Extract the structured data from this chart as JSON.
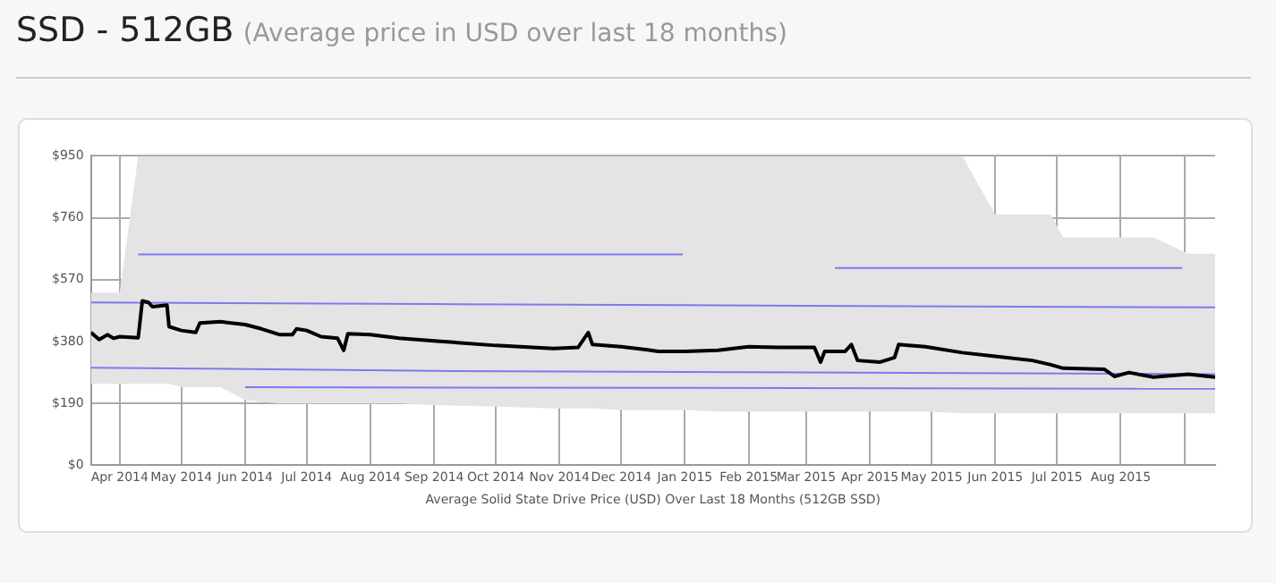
{
  "chart_data": {
    "type": "line",
    "title": "SSD - 512GB",
    "subtitle": "(Average price in USD over last 18 months)",
    "xlabel": "Average Solid State Drive Price (USD) Over Last 18 Months (512GB SSD)",
    "xlim": [
      "2014-03-18",
      "2015-09-16"
    ],
    "xticks": [
      {
        "value": "2014-04-01",
        "label": "Apr 2014"
      },
      {
        "value": "2014-05-01",
        "label": "May 2014"
      },
      {
        "value": "2014-06-01",
        "label": "Jun 2014"
      },
      {
        "value": "2014-07-01",
        "label": "Jul 2014"
      },
      {
        "value": "2014-08-01",
        "label": "Aug 2014"
      },
      {
        "value": "2014-09-01",
        "label": "Sep 2014"
      },
      {
        "value": "2014-10-01",
        "label": "Oct 2014"
      },
      {
        "value": "2014-11-01",
        "label": "Nov 2014"
      },
      {
        "value": "2014-12-01",
        "label": "Dec 2014"
      },
      {
        "value": "2015-01-01",
        "label": "Jan 2015"
      },
      {
        "value": "2015-02-01",
        "label": "Feb 2015"
      },
      {
        "value": "2015-03-01",
        "label": "Mar 2015"
      },
      {
        "value": "2015-04-01",
        "label": "Apr 2015"
      },
      {
        "value": "2015-05-01",
        "label": "May 2015"
      },
      {
        "value": "2015-06-01",
        "label": "Jun 2015"
      },
      {
        "value": "2015-07-01",
        "label": "Jul 2015"
      },
      {
        "value": "2015-08-01",
        "label": "Aug 2015"
      },
      {
        "value": "2015-09-01",
        "label": null
      }
    ],
    "ylim": [
      0,
      950
    ],
    "yticks": [
      {
        "value": 0,
        "label": "$0"
      },
      {
        "value": 190,
        "label": "$190"
      },
      {
        "value": 380,
        "label": "$380"
      },
      {
        "value": 570,
        "label": "$570"
      },
      {
        "value": 760,
        "label": "$760"
      },
      {
        "value": 950,
        "label": "$950"
      }
    ],
    "grid": true,
    "legend": false,
    "marker": "none",
    "line_style": "solid",
    "series": [
      {
        "color": "#7b7bef",
        "x": [
          "2014-03-18",
          "2014-09-01",
          "2015-03-01",
          "2015-09-16"
        ],
        "values": [
          500,
          495,
          490,
          485
        ]
      },
      {
        "color": "#7b7bef",
        "x": [
          "2014-04-10",
          "2014-12-31"
        ],
        "values": [
          648,
          648
        ]
      },
      {
        "color": "#7b7bef",
        "x": [
          "2014-03-18",
          "2014-09-01",
          "2015-03-01",
          "2015-09-16"
        ],
        "values": [
          300,
          290,
          285,
          280
        ]
      },
      {
        "color": "#7b7bef",
        "x": [
          "2014-06-01",
          "2015-09-16"
        ],
        "values": [
          240,
          235
        ]
      },
      {
        "color": "#7b7bef",
        "x": [
          "2015-03-15",
          "2015-08-31"
        ],
        "values": [
          606,
          606
        ]
      },
      {
        "color": "#000000",
        "x": [
          "2014-03-18",
          "2014-03-22",
          "2014-03-26",
          "2014-03-29",
          "2014-04-01",
          "2014-04-10",
          "2014-04-12",
          "2014-04-15",
          "2014-04-17",
          "2014-04-24",
          "2014-04-25",
          "2014-05-01",
          "2014-05-08",
          "2014-05-10",
          "2014-05-20",
          "2014-06-01",
          "2014-06-09",
          "2014-06-18",
          "2014-06-24",
          "2014-06-26",
          "2014-07-01",
          "2014-07-08",
          "2014-07-16",
          "2014-07-19",
          "2014-07-21",
          "2014-08-01",
          "2014-08-15",
          "2014-09-01",
          "2014-10-01",
          "2014-10-29",
          "2014-11-10",
          "2014-11-15",
          "2014-11-17",
          "2014-12-01",
          "2014-12-13",
          "2014-12-19",
          "2015-01-01",
          "2015-01-17",
          "2015-02-01",
          "2015-02-15",
          "2015-03-05",
          "2015-03-08",
          "2015-03-10",
          "2015-03-20",
          "2015-03-23",
          "2015-03-26",
          "2015-04-06",
          "2015-04-13",
          "2015-04-15",
          "2015-04-28",
          "2015-05-16",
          "2015-06-01",
          "2015-06-19",
          "2015-06-28",
          "2015-07-04",
          "2015-07-24",
          "2015-07-29",
          "2015-08-05",
          "2015-08-17",
          "2015-09-03",
          "2015-09-16"
        ],
        "values": [
          408,
          386,
          401,
          390,
          395,
          392,
          505,
          500,
          487,
          492,
          426,
          414,
          408,
          437,
          441,
          432,
          419,
          401,
          401,
          419,
          414,
          395,
          390,
          353,
          404,
          401,
          390,
          382,
          368,
          359,
          362,
          408,
          371,
          364,
          355,
          350,
          350,
          353,
          364,
          362,
          362,
          317,
          350,
          350,
          371,
          322,
          317,
          331,
          371,
          364,
          346,
          335,
          322,
          309,
          298,
          295,
          273,
          285,
          271,
          280,
          271
        ],
        "lower": [
          250,
          250,
          250,
          250,
          250,
          250,
          250,
          250,
          250,
          250,
          250,
          240,
          240,
          240,
          240,
          200,
          195,
          190,
          190,
          190,
          190,
          190,
          190,
          190,
          190,
          190,
          190,
          185,
          180,
          175,
          175,
          175,
          175,
          170,
          170,
          170,
          170,
          165,
          165,
          165,
          165,
          165,
          165,
          165,
          165,
          165,
          165,
          165,
          165,
          165,
          160,
          160,
          160,
          160,
          160,
          160,
          160,
          160,
          160,
          160,
          160
        ],
        "upper": [
          530,
          530,
          530,
          530,
          530,
          950,
          950,
          950,
          950,
          950,
          950,
          950,
          950,
          950,
          950,
          950,
          950,
          950,
          950,
          950,
          950,
          950,
          950,
          950,
          950,
          950,
          950,
          950,
          950,
          950,
          950,
          950,
          950,
          950,
          950,
          950,
          950,
          950,
          950,
          950,
          950,
          950,
          950,
          950,
          950,
          950,
          950,
          950,
          950,
          950,
          950,
          770,
          770,
          770,
          700,
          700,
          700,
          700,
          700,
          650,
          650
        ]
      }
    ]
  }
}
